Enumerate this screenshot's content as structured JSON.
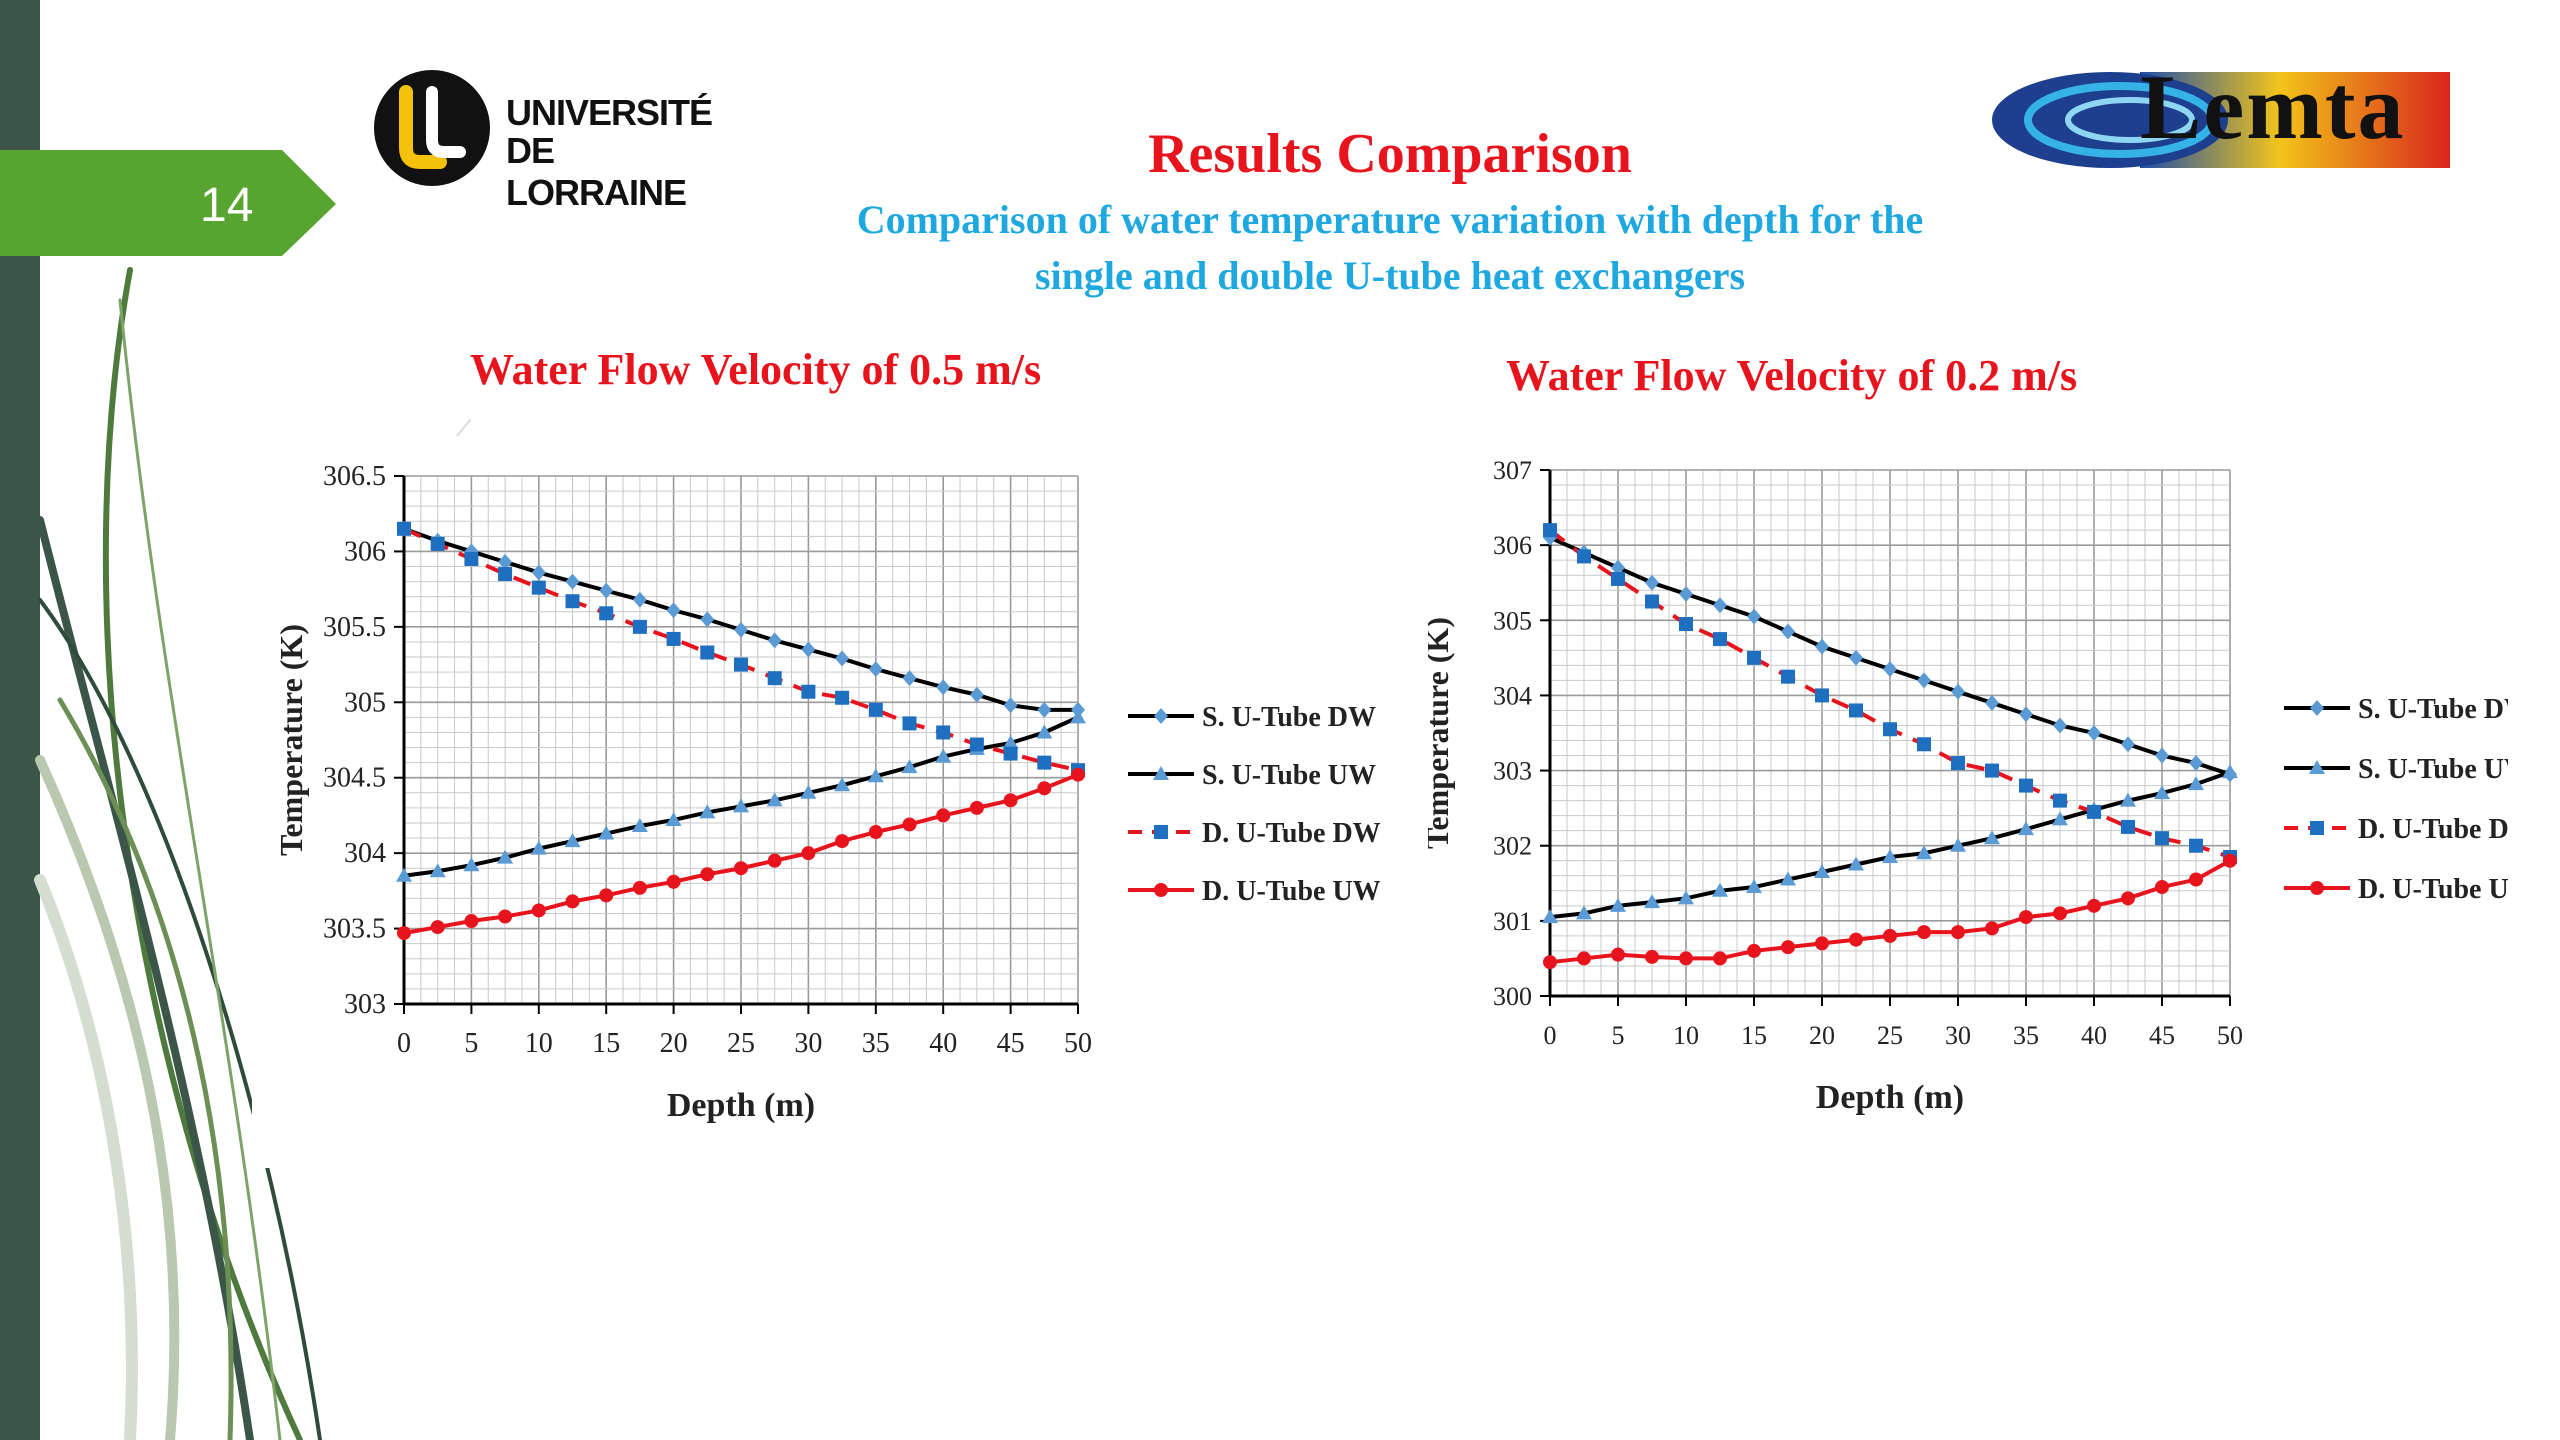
{
  "slide_number": "14",
  "logos": {
    "left": {
      "line1": "UNIVERSITÉ",
      "line2": "DE LORRAINE"
    },
    "right": {
      "text": "Lemta"
    }
  },
  "header": {
    "title": "Results Comparison",
    "subtitle_line1": "Comparison of water temperature variation with depth for the",
    "subtitle_line2": "single and double U-tube heat exchangers"
  },
  "colors": {
    "title_red": "#e8141d",
    "subtitle_blue": "#1fa8e0",
    "green_tab": "#58a430",
    "dark_bar": "#3b5648",
    "series_black": "#000000",
    "series_red": "#e8141d",
    "marker_blue": "#5b9bd5",
    "marker_square": "#1f6fc0"
  },
  "chart_data": [
    {
      "type": "line",
      "title": "Water Flow Velocity of 0.5 m/s",
      "xlabel": "Depth (m)",
      "ylabel": "Temperature (K)",
      "xlim": [
        0,
        50
      ],
      "ylim": [
        303,
        306.5
      ],
      "xticks": [
        "0",
        "5",
        "10",
        "15",
        "20",
        "25",
        "30",
        "35",
        "40",
        "45",
        "50"
      ],
      "yticks": [
        "303",
        "303.5",
        "304",
        "304.5",
        "305",
        "305.5",
        "306",
        "306.5"
      ],
      "grid": true,
      "legend_position": "right",
      "x": [
        0,
        2.5,
        5,
        7.5,
        10,
        12.5,
        15,
        17.5,
        20,
        22.5,
        25,
        27.5,
        30,
        32.5,
        35,
        37.5,
        40,
        42.5,
        45,
        47.5,
        50
      ],
      "series": [
        {
          "name": "S. U-Tube DW",
          "values": [
            306.15,
            306.07,
            306.0,
            305.93,
            305.86,
            305.8,
            305.74,
            305.68,
            305.61,
            305.55,
            305.48,
            305.41,
            305.35,
            305.29,
            305.22,
            305.16,
            305.1,
            305.05,
            304.98,
            304.95,
            304.95
          ]
        },
        {
          "name": "S. U-Tube UW",
          "values": [
            303.85,
            303.88,
            303.92,
            303.97,
            304.03,
            304.08,
            304.13,
            304.18,
            304.22,
            304.27,
            304.31,
            304.35,
            304.4,
            304.45,
            304.51,
            304.57,
            304.64,
            304.69,
            304.73,
            304.8,
            304.9
          ]
        },
        {
          "name": "D. U-Tube DW",
          "values": [
            306.15,
            306.05,
            305.95,
            305.85,
            305.76,
            305.67,
            305.59,
            305.5,
            305.42,
            305.33,
            305.25,
            305.16,
            305.07,
            305.03,
            304.95,
            304.86,
            304.8,
            304.72,
            304.66,
            304.6,
            304.55
          ]
        },
        {
          "name": "D. U-Tube UW",
          "values": [
            303.47,
            303.51,
            303.55,
            303.58,
            303.62,
            303.68,
            303.72,
            303.77,
            303.81,
            303.86,
            303.9,
            303.95,
            304.0,
            304.08,
            304.14,
            304.19,
            304.25,
            304.3,
            304.35,
            304.43,
            304.52
          ]
        }
      ]
    },
    {
      "type": "line",
      "title": "Water Flow Velocity of 0.2 m/s",
      "xlabel": "Depth (m)",
      "ylabel": "Temperature (K)",
      "xlim": [
        0,
        50
      ],
      "ylim": [
        300,
        307
      ],
      "xticks": [
        "0",
        "5",
        "10",
        "15",
        "20",
        "25",
        "30",
        "35",
        "40",
        "45",
        "50"
      ],
      "yticks": [
        "300",
        "301",
        "302",
        "303",
        "304",
        "305",
        "306",
        "307"
      ],
      "grid": true,
      "legend_position": "right",
      "x": [
        0,
        2.5,
        5,
        7.5,
        10,
        12.5,
        15,
        17.5,
        20,
        22.5,
        25,
        27.5,
        30,
        32.5,
        35,
        37.5,
        40,
        42.5,
        45,
        47.5,
        50
      ],
      "series": [
        {
          "name": "S. U-Tube DW",
          "values": [
            306.1,
            305.9,
            305.7,
            305.5,
            305.35,
            305.2,
            305.05,
            304.85,
            304.65,
            304.5,
            304.35,
            304.2,
            304.05,
            303.9,
            303.75,
            303.6,
            303.5,
            303.35,
            303.2,
            303.1,
            302.95
          ]
        },
        {
          "name": "S. U-Tube UW",
          "values": [
            301.05,
            301.1,
            301.2,
            301.25,
            301.3,
            301.4,
            301.45,
            301.55,
            301.65,
            301.75,
            301.85,
            301.9,
            302.0,
            302.1,
            302.22,
            302.35,
            302.48,
            302.6,
            302.7,
            302.82,
            302.98
          ]
        },
        {
          "name": "D. U-Tube DW",
          "values": [
            306.2,
            305.85,
            305.55,
            305.25,
            304.95,
            304.75,
            304.5,
            304.25,
            304.0,
            303.8,
            303.55,
            303.35,
            303.1,
            303.0,
            302.8,
            302.6,
            302.45,
            302.25,
            302.1,
            302.0,
            301.85
          ]
        },
        {
          "name": "D. U-Tube UW",
          "values": [
            300.45,
            300.5,
            300.55,
            300.52,
            300.5,
            300.5,
            300.6,
            300.65,
            300.7,
            300.75,
            300.8,
            300.85,
            300.85,
            300.9,
            301.05,
            301.1,
            301.2,
            301.3,
            301.45,
            301.55,
            301.8
          ]
        }
      ]
    }
  ]
}
